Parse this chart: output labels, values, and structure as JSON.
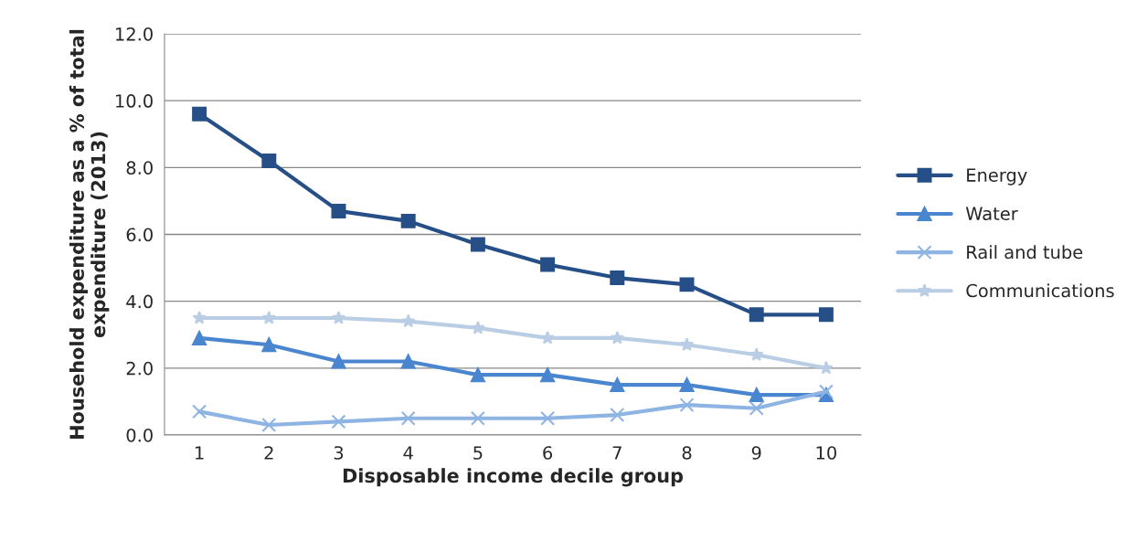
{
  "chart_data": {
    "type": "line",
    "xlabel": "Disposable income decile group",
    "ylabel": "Household expenditure as a % of total expenditure (2013)",
    "categories": [
      "1",
      "2",
      "3",
      "4",
      "5",
      "6",
      "7",
      "8",
      "9",
      "10"
    ],
    "series": [
      {
        "name": "Energy",
        "color": "#264f87",
        "marker": "square",
        "values": [
          9.6,
          8.2,
          6.7,
          6.4,
          5.7,
          5.1,
          4.7,
          4.5,
          3.6,
          3.6
        ]
      },
      {
        "name": "Water",
        "color": "#4a86d0",
        "marker": "triangle",
        "values": [
          2.9,
          2.7,
          2.2,
          2.2,
          1.8,
          1.8,
          1.5,
          1.5,
          1.2,
          1.2
        ]
      },
      {
        "name": "Rail and tube",
        "color": "#8eb4e3",
        "marker": "cross",
        "values": [
          0.7,
          0.3,
          0.4,
          0.5,
          0.5,
          0.5,
          0.6,
          0.9,
          0.8,
          1.3
        ]
      },
      {
        "name": "Communications",
        "color": "#b9cde5",
        "marker": "star",
        "values": [
          3.5,
          3.5,
          3.5,
          3.4,
          3.2,
          2.9,
          2.9,
          2.7,
          2.4,
          2.0
        ]
      }
    ],
    "ylim": [
      0,
      12
    ],
    "yticks": [
      {
        "value": 0,
        "label": "0.0"
      },
      {
        "value": 2,
        "label": "2.0"
      },
      {
        "value": 4,
        "label": "4.0"
      },
      {
        "value": 6,
        "label": "6.0"
      },
      {
        "value": 8,
        "label": "8.0"
      },
      {
        "value": 10,
        "label": "10.0"
      },
      {
        "value": 12,
        "label": "12.0"
      }
    ],
    "grid": "y",
    "legend": "right"
  }
}
